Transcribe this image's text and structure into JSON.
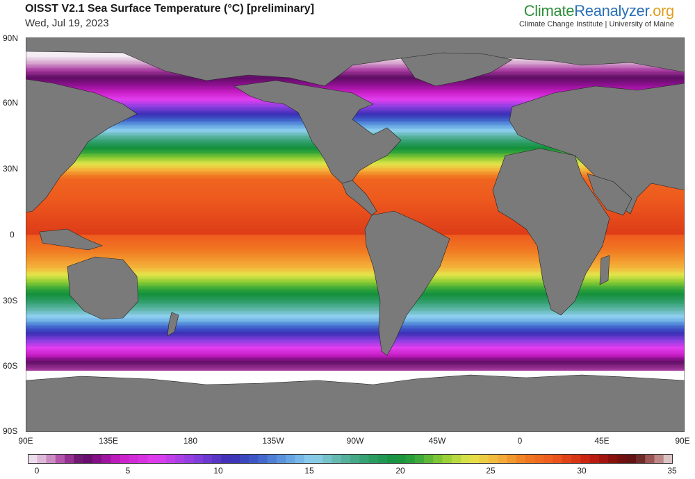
{
  "header": {
    "title": "OISST V2.1 Sea Surface Temperature (°C) [preliminary]",
    "date": "Wed, Jul 19, 2023",
    "brand_part1": "Climate",
    "brand_part2": "Reanalyzer",
    "brand_part3": ".org",
    "affiliation": "Climate Change Institute | University of Maine"
  },
  "map": {
    "projection": "equirectangular",
    "lat_labels": [
      "90N",
      "60N",
      "30N",
      "0",
      "30S",
      "60S",
      "90S"
    ],
    "lat_values": [
      90,
      60,
      30,
      0,
      -30,
      -60,
      -90
    ],
    "lon_labels": [
      "90E",
      "135E",
      "180",
      "135W",
      "90W",
      "45W",
      "0",
      "45E",
      "90E"
    ],
    "lon_values": [
      90,
      135,
      180,
      225,
      270,
      315,
      360,
      405,
      450
    ],
    "colors": {
      "land": "#7a7a7a",
      "sea_ice": "#ffffff",
      "borders": "#222222"
    }
  },
  "colorbar": {
    "min": 0,
    "max": 35,
    "tick_labels": [
      "0",
      "5",
      "10",
      "15",
      "20",
      "25",
      "30",
      "35"
    ],
    "tick_values": [
      0,
      5,
      10,
      15,
      20,
      25,
      30,
      35
    ],
    "color_stops": [
      {
        "value": 0,
        "color": "#f4eef4"
      },
      {
        "value": 1,
        "color": "#d7a6cf"
      },
      {
        "value": 2,
        "color": "#a83aa0"
      },
      {
        "value": 3,
        "color": "#5d0d63"
      },
      {
        "value": 4,
        "color": "#8e1090"
      },
      {
        "value": 5,
        "color": "#c81ec6"
      },
      {
        "value": 7,
        "color": "#e23ef0"
      },
      {
        "value": 9,
        "color": "#8a3fe0"
      },
      {
        "value": 11,
        "color": "#3a2fb5"
      },
      {
        "value": 12.5,
        "color": "#3e5ec9"
      },
      {
        "value": 14,
        "color": "#5f9ee0"
      },
      {
        "value": 15.5,
        "color": "#8fd0ef"
      },
      {
        "value": 17,
        "color": "#5cb4a5"
      },
      {
        "value": 18.5,
        "color": "#2e9e6a"
      },
      {
        "value": 20,
        "color": "#14903c"
      },
      {
        "value": 21,
        "color": "#2fa33a"
      },
      {
        "value": 22.5,
        "color": "#8ccc33"
      },
      {
        "value": 24,
        "color": "#e3e54a"
      },
      {
        "value": 25.5,
        "color": "#f4b33a"
      },
      {
        "value": 27,
        "color": "#f07a22"
      },
      {
        "value": 28.5,
        "color": "#ee5a1e"
      },
      {
        "value": 30,
        "color": "#d42c14"
      },
      {
        "value": 31,
        "color": "#b01510"
      },
      {
        "value": 32,
        "color": "#7a0f0a"
      },
      {
        "value": 33,
        "color": "#5a1414"
      },
      {
        "value": 34,
        "color": "#b06a6a"
      },
      {
        "value": 35,
        "color": "#e8e0e0"
      }
    ]
  }
}
